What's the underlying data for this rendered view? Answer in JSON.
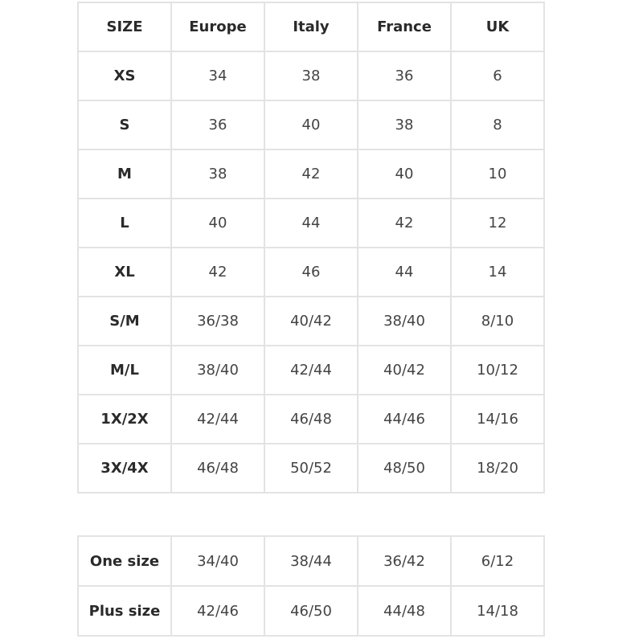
{
  "size_table": {
    "headers": [
      "SIZE",
      "Europe",
      "Italy",
      "France",
      "UK"
    ],
    "rows": [
      [
        "XS",
        "34",
        "38",
        "36",
        "6"
      ],
      [
        "S",
        "36",
        "40",
        "38",
        "8"
      ],
      [
        "M",
        "38",
        "42",
        "40",
        "10"
      ],
      [
        "L",
        "40",
        "44",
        "42",
        "12"
      ],
      [
        "XL",
        "42",
        "46",
        "44",
        "14"
      ],
      [
        "S/M",
        "36/38",
        "40/42",
        "38/40",
        "8/10"
      ],
      [
        "M/L",
        "38/40",
        "42/44",
        "40/42",
        "10/12"
      ],
      [
        "1X/2X",
        "42/44",
        "46/48",
        "44/46",
        "14/16"
      ],
      [
        "3X/4X",
        "46/48",
        "50/52",
        "48/50",
        "18/20"
      ]
    ]
  },
  "extra_table": {
    "rows": [
      [
        "One size",
        "34/40",
        "38/44",
        "36/42",
        "6/12"
      ],
      [
        "Plus size",
        "42/46",
        "46/50",
        "44/48",
        "14/18"
      ]
    ]
  }
}
